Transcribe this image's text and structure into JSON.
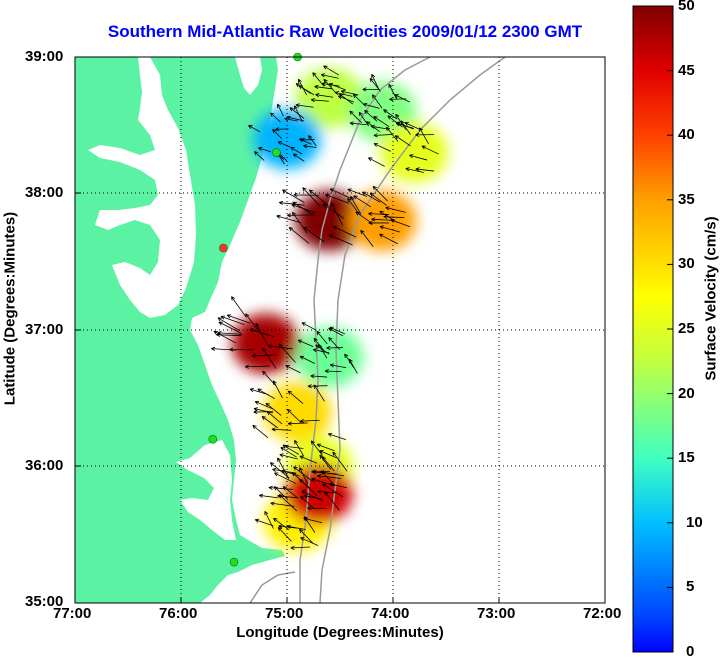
{
  "title": "Southern Mid-Atlantic Raw Velocities 2009/01/12 2300 GMT",
  "x_axis": {
    "label": "Longitude (Degrees:Minutes)",
    "ticks": [
      "77:00",
      "76:00",
      "75:00",
      "74:00",
      "73:00",
      "72:00"
    ]
  },
  "y_axis": {
    "label": "Latitude (Degrees:Minutes)",
    "ticks": [
      "39:00",
      "38:00",
      "37:00",
      "36:00",
      "35:00"
    ]
  },
  "colorbar": {
    "label": "Surface Velocity (cm/s)",
    "ticks": [
      "50",
      "45",
      "40",
      "35",
      "30",
      "25",
      "20",
      "15",
      "10",
      "5",
      "0"
    ],
    "min": 0,
    "max": 50,
    "colormap": "jet"
  },
  "colors": {
    "land": "#5cf2a4",
    "water": "#ffffff",
    "title": "#0000ff",
    "station_green": "#22dd22",
    "station_red": "#ff3030"
  },
  "chart_data": {
    "type": "heatmap",
    "lon_range": [
      -77,
      -72
    ],
    "lat_range": [
      35,
      39
    ],
    "grid": "dotted",
    "colorbar_range": [
      0,
      50
    ],
    "velocity_regions": [
      {
        "lon": -74.6,
        "lat": 38.7,
        "speed_cm_s": 28
      },
      {
        "lon": -74.1,
        "lat": 38.6,
        "speed_cm_s": 25
      },
      {
        "lon": -73.8,
        "lat": 38.3,
        "speed_cm_s": 30
      },
      {
        "lon": -75.0,
        "lat": 38.4,
        "speed_cm_s": 15
      },
      {
        "lon": -74.6,
        "lat": 37.8,
        "speed_cm_s": 50
      },
      {
        "lon": -74.1,
        "lat": 37.8,
        "speed_cm_s": 36
      },
      {
        "lon": -75.2,
        "lat": 36.9,
        "speed_cm_s": 48
      },
      {
        "lon": -74.6,
        "lat": 36.8,
        "speed_cm_s": 24
      },
      {
        "lon": -74.9,
        "lat": 36.4,
        "speed_cm_s": 33
      },
      {
        "lon": -74.7,
        "lat": 36.0,
        "speed_cm_s": 30
      },
      {
        "lon": -74.9,
        "lat": 35.6,
        "speed_cm_s": 32
      },
      {
        "lon": -74.7,
        "lat": 35.8,
        "speed_cm_s": 46
      }
    ],
    "stations": [
      {
        "lon": -74.9,
        "lat": 39.0,
        "status": "ok"
      },
      {
        "lon": -75.1,
        "lat": 38.3,
        "status": "ok"
      },
      {
        "lon": -75.6,
        "lat": 37.6,
        "status": "down"
      },
      {
        "lon": -75.7,
        "lat": 36.2,
        "status": "ok"
      },
      {
        "lon": -75.5,
        "lat": 35.3,
        "status": "ok"
      }
    ]
  }
}
